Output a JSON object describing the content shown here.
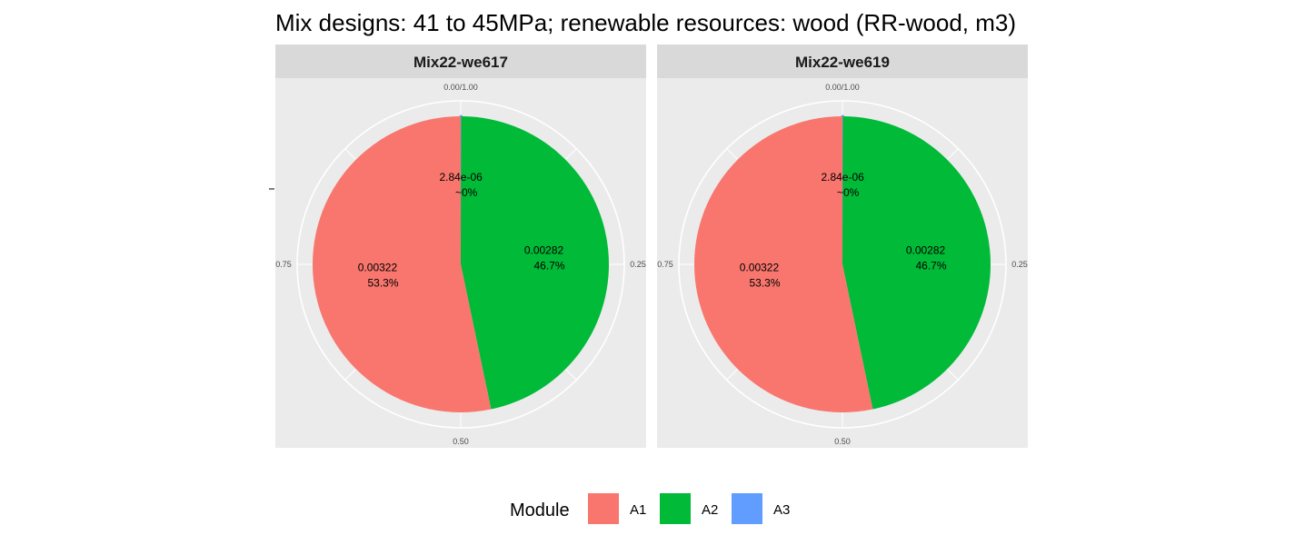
{
  "chart_data": {
    "type": "pie",
    "title": "Mix designs: 41 to 45MPa; renewable resources: wood (RR-wood, m3)",
    "theta_ticks": [
      "0.00/1.00",
      "0.25",
      "0.50",
      "0.75"
    ],
    "legend": {
      "title": "Module",
      "position": "bottom",
      "entries": [
        {
          "label": "A1",
          "color": "#F8766D"
        },
        {
          "label": "A2",
          "color": "#00BA38"
        },
        {
          "label": "A3",
          "color": "#619CFF"
        }
      ]
    },
    "panels": [
      {
        "name": "Mix22-we617",
        "slices": [
          {
            "module": "A3",
            "value": 2.84e-06,
            "value_label": "2.84e-06",
            "pct_label": "~0%"
          },
          {
            "module": "A2",
            "value": 0.00282,
            "value_label": "0.00282",
            "pct_label": "46.7%"
          },
          {
            "module": "A1",
            "value": 0.00322,
            "value_label": "0.00322",
            "pct_label": "53.3%"
          }
        ]
      },
      {
        "name": "Mix22-we619",
        "slices": [
          {
            "module": "A3",
            "value": 2.84e-06,
            "value_label": "2.84e-06",
            "pct_label": "~0%"
          },
          {
            "module": "A2",
            "value": 0.00282,
            "value_label": "0.00282",
            "pct_label": "46.7%"
          },
          {
            "module": "A1",
            "value": 0.00322,
            "value_label": "0.00322",
            "pct_label": "53.3%"
          }
        ]
      }
    ]
  }
}
